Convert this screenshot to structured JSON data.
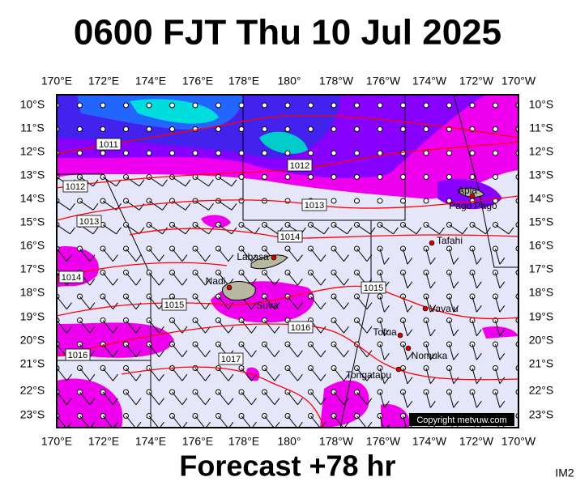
{
  "title": "0600 FJT Thu 10 Jul 2025",
  "footer": "Forecast +78 hr",
  "corner_label": "IM2",
  "copyright": "Copyright metvuw.com",
  "longitudes": [
    "170°E",
    "172°E",
    "174°E",
    "176°E",
    "178°E",
    "180°",
    "178°W",
    "176°W",
    "174°W",
    "172°W",
    "170°W"
  ],
  "latitudes": [
    "10°S",
    "11°S",
    "12°S",
    "13°S",
    "14°S",
    "15°S",
    "16°S",
    "17°S",
    "18°S",
    "19°S",
    "20°S",
    "21°S",
    "22°S",
    "23°S"
  ],
  "isobar_labels": [
    "1011",
    "1012",
    "1012",
    "1013",
    "1013",
    "1014",
    "1014",
    "1015",
    "1015",
    "1016",
    "1016",
    "1017"
  ],
  "places": [
    "Apia",
    "Pago Pago",
    "Tafahi",
    "Labasa",
    "Nadi",
    "Suva",
    "Vava'u",
    "Tofua",
    "Nomuka",
    "Tongatapu"
  ]
}
